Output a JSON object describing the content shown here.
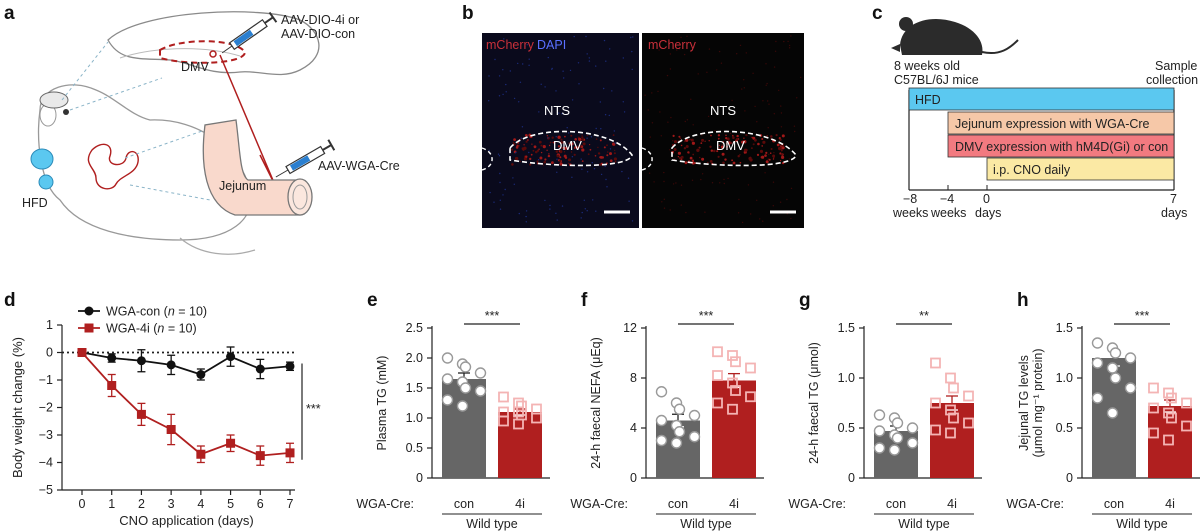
{
  "colors": {
    "con": "#666666",
    "inhib": "#b01f1f",
    "con_points": "#ffffff",
    "inhib_points": "#f4b4b4",
    "hfd": "#5bc8f0",
    "jejunum_bar": "#f6c8a8",
    "dmv_bar": "#f27a80",
    "cno_bar": "#fbe9a4"
  },
  "panel_a": {
    "label": "a",
    "virus_top": "AAV-DIO-4i or",
    "virus_top_2": "AAV-DIO-con",
    "dmv": "DMV",
    "virus_bottom": "AAV-WGA-Cre",
    "jejunum": "Jejunum",
    "hfd": "HFD",
    "icons": [
      "mouse-icon",
      "syringe-icon",
      "brain-icon",
      "intestine-icon",
      "food-pellet-icon"
    ]
  },
  "panel_b": {
    "label": "b",
    "left_legend_1": "mCherry",
    "left_legend_2": "DAPI",
    "right_legend": "mCherry",
    "nts": "NTS",
    "dmv": "DMV"
  },
  "panel_c": {
    "label": "c",
    "mouse_caption_1": "8 weeks old",
    "mouse_caption_2": "C57BL/6J mice",
    "sample_1": "Sample",
    "sample_2": "collection",
    "bars": [
      "HFD",
      "Jejunum expression with WGA-Cre",
      "DMV expression with hM4D(Gi) or con",
      "i.p. CNO daily"
    ],
    "ticks": [
      "−8",
      "−4",
      "0",
      "7"
    ],
    "tick_units": [
      "weeks",
      "weeks",
      "days",
      "days"
    ]
  },
  "chart_data": [
    {
      "panel": "d",
      "type": "line",
      "title": "",
      "xlabel": "CNO application (days)",
      "ylabel": "Body weight change (%)",
      "x": [
        0,
        1,
        2,
        3,
        4,
        5,
        6,
        7
      ],
      "xlim": [
        0,
        7
      ],
      "ylim": [
        -5,
        1
      ],
      "yticks": [
        1,
        0,
        -1,
        -2,
        -3,
        -4,
        -5
      ],
      "yticklabels": [
        "1",
        "0",
        "−1",
        "−2",
        "−3",
        "−4",
        "−5"
      ],
      "series": [
        {
          "name": "WGA-con (n = 10)",
          "legend_name": "WGA-con",
          "legend_n": "n",
          "legend_eq": " = 10)",
          "color": "#111111",
          "values": [
            0,
            -0.2,
            -0.3,
            -0.45,
            -0.8,
            -0.15,
            -0.6,
            -0.5
          ],
          "errors": [
            0,
            0.15,
            0.4,
            0.35,
            0.2,
            0.35,
            0.35,
            0.15
          ]
        },
        {
          "name": "WGA-4i (n = 10)",
          "legend_name": "WGA-4i",
          "legend_n": "n",
          "legend_eq": " = 10)",
          "color": "#b01f1f",
          "values": [
            0,
            -1.2,
            -2.25,
            -2.8,
            -3.7,
            -3.3,
            -3.75,
            -3.65
          ],
          "errors": [
            0,
            0.4,
            0.4,
            0.55,
            0.3,
            0.3,
            0.35,
            0.35
          ]
        }
      ],
      "significance": "***"
    },
    {
      "panel": "e",
      "type": "bar",
      "ylabel": "Plasma TG (mM)",
      "categories": [
        "con",
        "4i"
      ],
      "values": [
        1.65,
        1.1
      ],
      "errors": [
        0.1,
        0.05
      ],
      "ylim": [
        0,
        2.5
      ],
      "yticks": [
        0,
        0.5,
        1.0,
        1.5,
        2.0,
        2.5
      ],
      "yticklabels": [
        "0",
        "0.5",
        "1.0",
        "1.5",
        "2.0",
        "2.5"
      ],
      "points": {
        "con": [
          2.0,
          1.9,
          1.85,
          1.75,
          1.65,
          1.6,
          1.5,
          1.45,
          1.3,
          1.2
        ],
        "4i": [
          1.35,
          1.25,
          1.2,
          1.15,
          1.1,
          1.1,
          1.05,
          1.0,
          0.95,
          0.9
        ]
      },
      "significance": "***",
      "group_prefix": "WGA-Cre:",
      "group_label": "Wild type"
    },
    {
      "panel": "f",
      "type": "bar",
      "ylabel": "24-h faecal NEFA (μEq)",
      "categories": [
        "con",
        "4i"
      ],
      "values": [
        4.6,
        7.8
      ],
      "errors": [
        0.5,
        0.55
      ],
      "ylim": [
        0,
        12
      ],
      "yticks": [
        0,
        4,
        8,
        12
      ],
      "yticklabels": [
        "0",
        "4",
        "8",
        "12"
      ],
      "points": {
        "con": [
          6.9,
          6.0,
          5.5,
          5.0,
          4.6,
          4.2,
          3.7,
          3.3,
          3.0,
          2.8
        ],
        "4i": [
          10.1,
          9.8,
          9.3,
          8.8,
          8.2,
          7.6,
          7.0,
          6.5,
          6.0,
          5.5
        ]
      },
      "significance": "***",
      "group_prefix": "WGA-Cre:",
      "group_label": "Wild type"
    },
    {
      "panel": "g",
      "type": "bar",
      "ylabel": "24-h faecal TG (μmol)",
      "categories": [
        "con",
        "4i"
      ],
      "values": [
        0.47,
        0.75
      ],
      "errors": [
        0.05,
        0.07
      ],
      "ylim": [
        0,
        1.5
      ],
      "yticks": [
        0,
        0.5,
        1.0,
        1.5
      ],
      "yticklabels": [
        "0",
        "0.5",
        "1.0",
        "1.5"
      ],
      "points": {
        "con": [
          0.63,
          0.6,
          0.55,
          0.5,
          0.47,
          0.43,
          0.4,
          0.35,
          0.3,
          0.28
        ],
        "4i": [
          1.15,
          1.0,
          0.9,
          0.82,
          0.75,
          0.68,
          0.6,
          0.55,
          0.48,
          0.45
        ]
      },
      "significance": "**",
      "group_prefix": "WGA-Cre:",
      "group_label": "Wild type"
    },
    {
      "panel": "h",
      "type": "bar",
      "ylabel": "Jejunal TG levels",
      "ylabel_2": "(μmol mg⁻¹ protein)",
      "categories": [
        "con",
        "4i"
      ],
      "values": [
        1.2,
        0.72
      ],
      "errors": [
        0.08,
        0.06
      ],
      "ylim": [
        0,
        1.5
      ],
      "yticks": [
        0,
        0.5,
        1.0,
        1.5
      ],
      "yticklabels": [
        "0",
        "0.5",
        "1.0",
        "1.5"
      ],
      "points": {
        "con": [
          1.35,
          1.3,
          1.25,
          1.2,
          1.15,
          1.1,
          1.0,
          0.9,
          0.8,
          0.65
        ],
        "4i": [
          0.9,
          0.85,
          0.8,
          0.75,
          0.7,
          0.65,
          0.6,
          0.52,
          0.45,
          0.38
        ]
      },
      "significance": "***",
      "group_prefix": "WGA-Cre:",
      "group_label": "Wild type"
    }
  ]
}
